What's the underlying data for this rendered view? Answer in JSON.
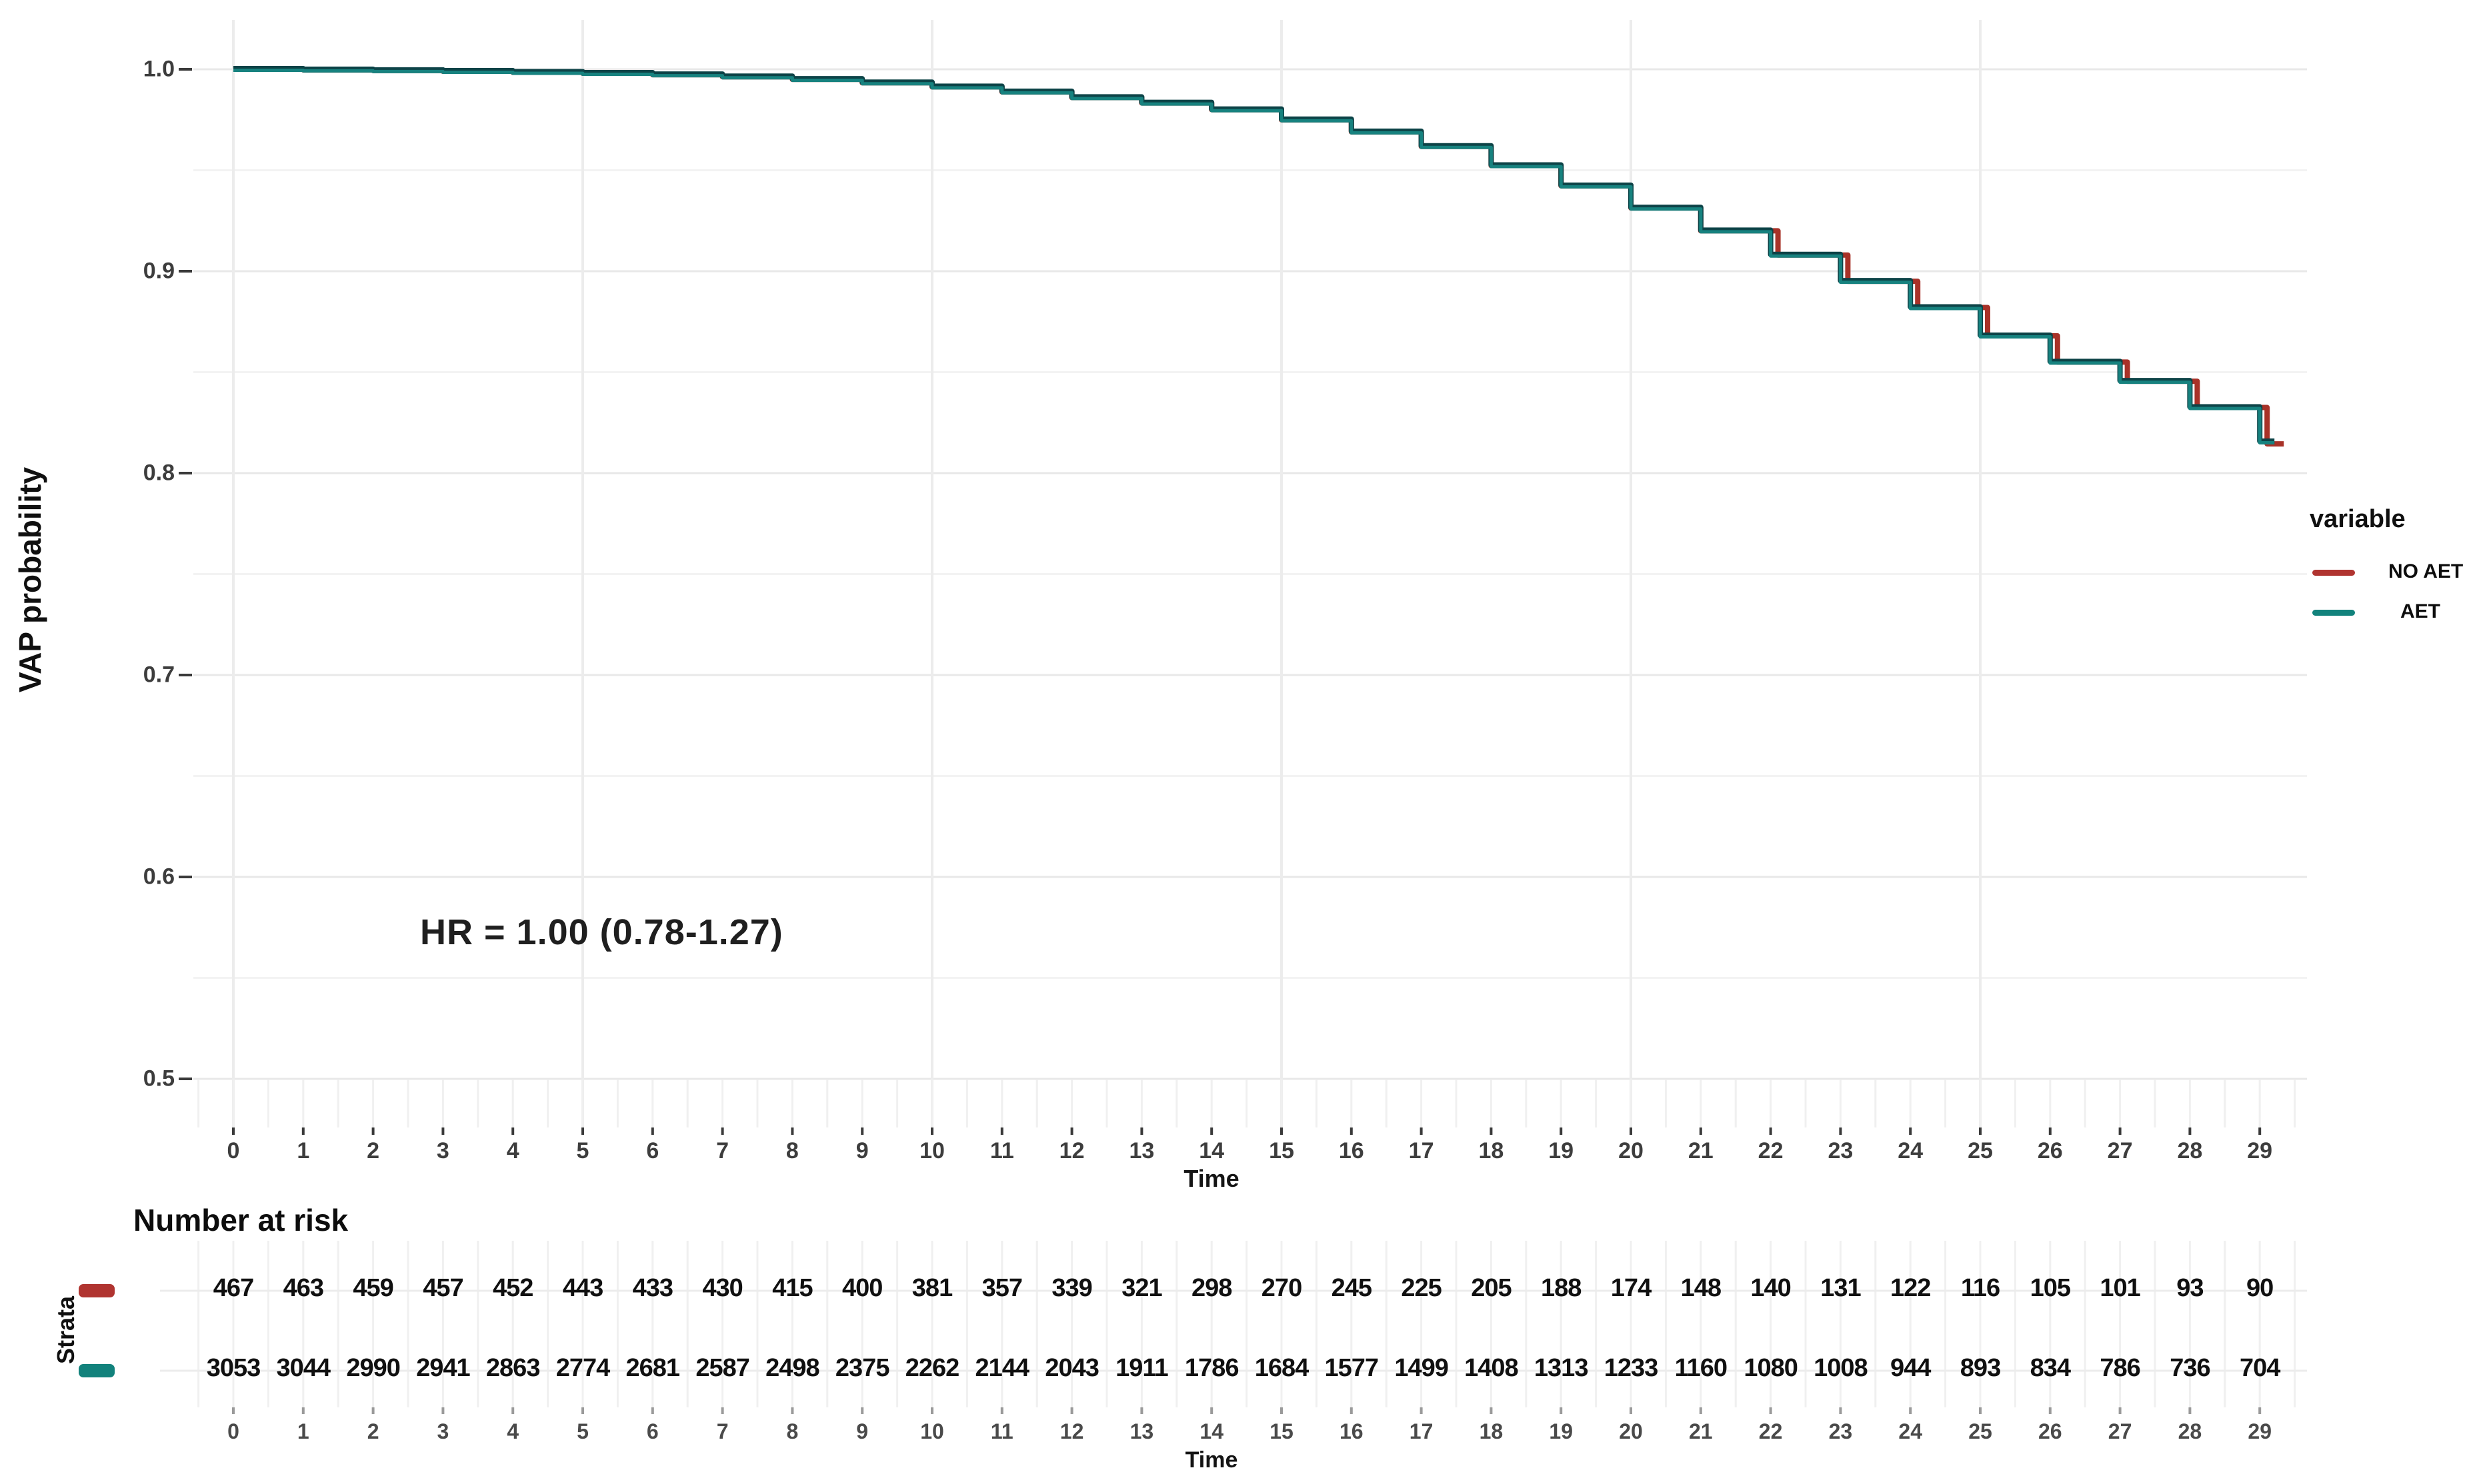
{
  "figure": {
    "y_axis_title": "VAP probability",
    "x_axis_title": "Time",
    "annotation": "HR = 1.00 (0.78-1.27)",
    "y_tick_labels": [
      "1.0",
      "0.9",
      "0.8",
      "0.7",
      "0.6",
      "0.5"
    ],
    "x_tick_labels": [
      "0",
      "1",
      "2",
      "3",
      "4",
      "5",
      "6",
      "7",
      "8",
      "9",
      "10",
      "11",
      "12",
      "13",
      "14",
      "15",
      "16",
      "17",
      "18",
      "19",
      "20",
      "21",
      "22",
      "23",
      "24",
      "25",
      "26",
      "27",
      "28",
      "29"
    ],
    "legend": {
      "title": "variable",
      "items": [
        {
          "label": "NO AET",
          "color": "#b03430"
        },
        {
          "label": "AET",
          "color": "#12827c"
        }
      ]
    },
    "risk_table": {
      "title": "Number at risk",
      "strata_label": "Strata",
      "x_axis_title": "Time",
      "rows": [
        {
          "name": "NO AET",
          "color": "#b03430",
          "values": [
            467,
            463,
            459,
            457,
            452,
            443,
            433,
            430,
            415,
            400,
            381,
            357,
            339,
            321,
            298,
            270,
            245,
            225,
            205,
            188,
            174,
            148,
            140,
            131,
            122,
            116,
            105,
            101,
            93,
            90
          ]
        },
        {
          "name": "AET",
          "color": "#12827c",
          "values": [
            3053,
            3044,
            2990,
            2941,
            2863,
            2774,
            2681,
            2587,
            2498,
            2375,
            2262,
            2144,
            2043,
            1911,
            1786,
            1684,
            1577,
            1499,
            1408,
            1313,
            1233,
            1160,
            1080,
            1008,
            944,
            893,
            834,
            786,
            736,
            704
          ]
        }
      ]
    }
  },
  "chart_data": {
    "type": "line",
    "subtype": "kaplan-meier-step",
    "title": "",
    "xlabel": "Time",
    "ylabel": "VAP probability",
    "x": [
      0,
      1,
      2,
      3,
      4,
      5,
      6,
      7,
      8,
      9,
      10,
      11,
      12,
      13,
      14,
      15,
      16,
      17,
      18,
      19,
      20,
      21,
      22,
      23,
      24,
      25,
      26,
      27,
      28,
      29
    ],
    "series": [
      {
        "name": "NO AET",
        "color": "#a83228",
        "values": [
          1.0,
          0.9997,
          0.9994,
          0.999,
          0.9985,
          0.998,
          0.9973,
          0.9963,
          0.995,
          0.9933,
          0.9913,
          0.9888,
          0.986,
          0.9833,
          0.98,
          0.975,
          0.969,
          0.9618,
          0.9523,
          0.9423,
          0.9313,
          0.92,
          0.908,
          0.895,
          0.882,
          0.868,
          0.855,
          0.8455,
          0.8325,
          0.8145
        ]
      },
      {
        "name": "AET",
        "color": "#17827f",
        "values": [
          1.0,
          0.9997,
          0.9994,
          0.999,
          0.9985,
          0.998,
          0.9973,
          0.9963,
          0.995,
          0.9933,
          0.9913,
          0.9888,
          0.986,
          0.9833,
          0.98,
          0.975,
          0.969,
          0.9618,
          0.9523,
          0.9423,
          0.9313,
          0.92,
          0.908,
          0.895,
          0.882,
          0.868,
          0.855,
          0.8455,
          0.8325,
          0.8155
        ]
      }
    ],
    "xlim": [
      0,
      29.2
    ],
    "ylim": [
      0.476,
      1.024
    ],
    "yticks": [
      0.5,
      0.6,
      0.7,
      0.8,
      0.9,
      1.0
    ],
    "ytick_minor": [
      0.55,
      0.65,
      0.75,
      0.85,
      0.95
    ],
    "xticks_major_gridlines": [
      0,
      5,
      10,
      15,
      20,
      25
    ],
    "grid": true,
    "legend_title": "variable",
    "legend_position": "right",
    "annotation": "HR = 1.00 (0.78-1.27)",
    "annotation_xy": [
      5,
      0.575
    ]
  }
}
